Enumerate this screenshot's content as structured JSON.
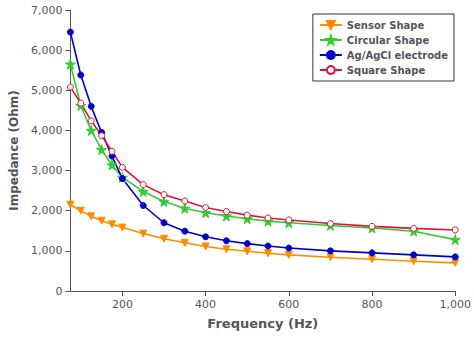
{
  "chart_data": {
    "type": "line",
    "xlabel": "Frequency (Hz)",
    "ylabel": "Impedance (Ohm)",
    "xlim": [
      75,
      1000
    ],
    "ylim": [
      0,
      7000
    ],
    "xticks": [
      200,
      400,
      600,
      800,
      1000
    ],
    "yticks": [
      0,
      1000,
      2000,
      3000,
      4000,
      5000,
      6000,
      7000
    ],
    "grid": false,
    "legend": "upper right",
    "x": [
      75,
      100,
      125,
      150,
      175,
      200,
      250,
      300,
      350,
      400,
      450,
      500,
      550,
      600,
      700,
      800,
      900,
      1000
    ],
    "series": [
      {
        "name": "Sensor Shape",
        "color": "#FF8C00",
        "marker": "triangle-down",
        "values": [
          2150,
          2000,
          1860,
          1750,
          1660,
          1580,
          1430,
          1300,
          1200,
          1110,
          1040,
          990,
          940,
          900,
          840,
          790,
          740,
          700
        ]
      },
      {
        "name": "Circular Shape",
        "color": "#32CD32",
        "marker": "star",
        "values": [
          5650,
          4620,
          4000,
          3520,
          3140,
          2830,
          2480,
          2230,
          2060,
          1950,
          1870,
          1800,
          1740,
          1700,
          1630,
          1570,
          1490,
          1280
        ]
      },
      {
        "name": "Ag/AgCl electrode",
        "color": "#0000CD",
        "marker": "circle",
        "values": [
          6450,
          5380,
          4600,
          3950,
          3360,
          2800,
          2130,
          1700,
          1490,
          1350,
          1250,
          1180,
          1120,
          1070,
          1000,
          950,
          900,
          850
        ]
      },
      {
        "name": "Square Shape",
        "color": "#DC143C",
        "marker": "open-circle",
        "values": [
          5080,
          4680,
          4240,
          3870,
          3480,
          3080,
          2650,
          2400,
          2240,
          2080,
          1980,
          1890,
          1820,
          1770,
          1680,
          1610,
          1560,
          1520
        ]
      }
    ]
  }
}
